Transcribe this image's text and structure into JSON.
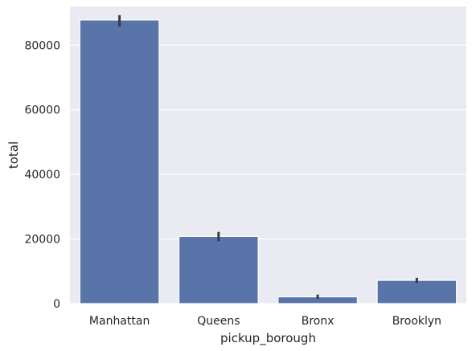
{
  "chart_data": {
    "type": "bar",
    "categories": [
      "Manhattan",
      "Queens",
      "Bronx",
      "Brooklyn"
    ],
    "values": [
      87800,
      20800,
      2100,
      7200
    ],
    "error_bars": [
      {
        "low": 85800,
        "high": 89300
      },
      {
        "low": 19300,
        "high": 22200
      },
      {
        "low": 1500,
        "high": 2800
      },
      {
        "low": 6400,
        "high": 8000
      }
    ],
    "xlabel": "pickup_borough",
    "ylabel": "total",
    "ylim": [
      0,
      92000
    ],
    "yticks": [
      0,
      20000,
      40000,
      60000,
      80000
    ],
    "ytick_labels": [
      "0",
      "20000",
      "40000",
      "60000",
      "80000"
    ],
    "grid": true,
    "colors": {
      "bar": "#5874a8",
      "background": "#eaeaf2",
      "grid": "#ffffff",
      "error_bar": "#3b3b3b"
    }
  }
}
